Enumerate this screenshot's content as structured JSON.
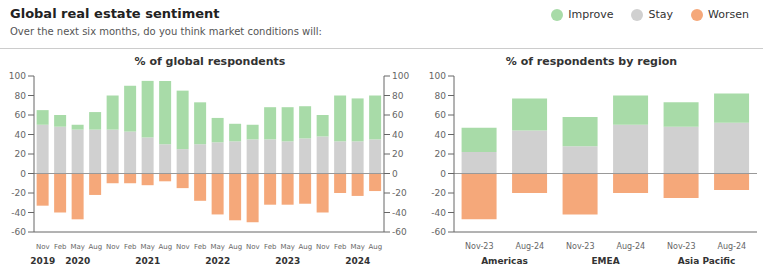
{
  "title": "Global real estate sentiment",
  "subtitle": "Over the next six months, do you think market conditions will:",
  "legend": "upper right",
  "chart_data": [
    {
      "type": "bar",
      "title": "% of global respondents",
      "stacked": true,
      "grid": false,
      "categories": [
        "Nov",
        "Feb",
        "May",
        "Aug",
        "Nov",
        "Feb",
        "May",
        "Aug",
        "Nov",
        "Feb",
        "May",
        "Aug",
        "Nov",
        "Feb",
        "May",
        "Aug",
        "Nov",
        "Feb",
        "May",
        "Aug"
      ],
      "series": [
        {
          "name": "Improve",
          "color": "#a8dba8",
          "values": [
            15,
            12,
            5,
            18,
            35,
            47,
            58,
            65,
            60,
            43,
            25,
            18,
            15,
            33,
            35,
            33,
            22,
            47,
            44,
            45
          ]
        },
        {
          "name": "Stay",
          "color": "#d0d0d0",
          "values": [
            50,
            48,
            45,
            45,
            45,
            43,
            37,
            30,
            25,
            30,
            32,
            33,
            35,
            35,
            33,
            36,
            38,
            33,
            33,
            35
          ]
        },
        {
          "name": "Worsen",
          "color": "#f5a87a",
          "values": [
            -33,
            -40,
            -47,
            -22,
            -10,
            -10,
            -12,
            -8,
            -15,
            -28,
            -42,
            -48,
            -50,
            -32,
            -32,
            -31,
            -40,
            -20,
            -23,
            -18
          ]
        }
      ],
      "ylim": [
        -60,
        100
      ],
      "yticks": [
        -60,
        -40,
        -20,
        0,
        20,
        40,
        60,
        80,
        100
      ],
      "y2lim": [
        -60,
        100
      ],
      "y2ticks": [
        -60,
        -40,
        -20,
        0,
        20,
        40,
        60,
        80,
        100
      ],
      "annotations": [
        {
          "text": "2019",
          "x": 0
        },
        {
          "text": "2020",
          "x": 2
        },
        {
          "text": "2021",
          "x": 6
        },
        {
          "text": "2022",
          "x": 10
        },
        {
          "text": "2023",
          "x": 14
        },
        {
          "text": "2024",
          "x": 18
        }
      ]
    },
    {
      "type": "bar",
      "title": "% of respondents by region",
      "stacked": true,
      "grid": false,
      "categories": [
        "Nov-23",
        "Aug-24",
        "Nov-23",
        "Aug-24",
        "Nov-23",
        "Aug-24"
      ],
      "series": [
        {
          "name": "Improve",
          "color": "#a8dba8",
          "values": [
            25,
            33,
            30,
            30,
            25,
            30
          ]
        },
        {
          "name": "Stay",
          "color": "#d0d0d0",
          "values": [
            22,
            44,
            28,
            50,
            48,
            52
          ]
        },
        {
          "name": "Worsen",
          "color": "#f5a87a",
          "values": [
            -47,
            -20,
            -42,
            -20,
            -25,
            -17
          ]
        }
      ],
      "ylim": [
        -60,
        100
      ],
      "yticks": [
        -60,
        -40,
        -20,
        0,
        20,
        40,
        60,
        80,
        100
      ],
      "annotations": [
        {
          "text": "Americas",
          "x": 0.5
        },
        {
          "text": "EMEA",
          "x": 2.5
        },
        {
          "text": "Asia Pacific",
          "x": 4.5
        }
      ]
    }
  ]
}
